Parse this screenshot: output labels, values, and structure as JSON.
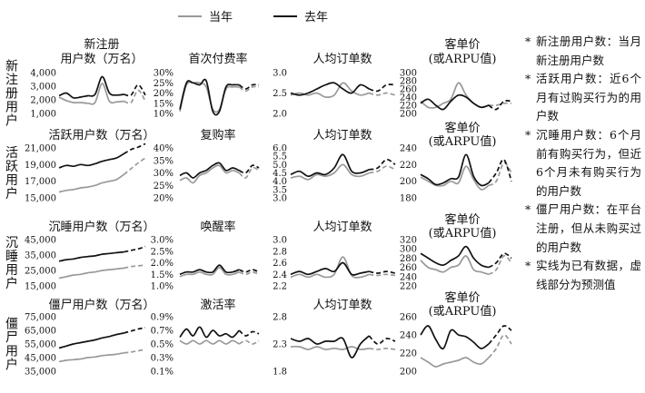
{
  "legend": [
    {
      "label": "当年",
      "color": "#999999"
    },
    {
      "label": "去年",
      "color": "#111111"
    }
  ],
  "notes": [
    "新注册用户数：当月新注册用户数",
    "活跃用户数：近6个月有过购买行为的用户数",
    "沉睡用户数：6个月前有购买行为，但近6个月未有购买行为的用户数",
    "僵尸用户数：在平台注册，但从未购买过的用户数",
    "实线为已有数据，虚线部分为预测值"
  ],
  "chart_data": [
    {
      "row": 0,
      "col": 0,
      "type": "line",
      "title": "新注册\n用户数（万名）",
      "ylabel": "新注册用户",
      "ylim": [
        1000,
        4000
      ],
      "yticks": [
        "1,000",
        "2,000",
        "3,000",
        "4,000"
      ],
      "series": [
        {
          "name": "当年",
          "values": [
            2200,
            1950,
            1800,
            1800,
            1750,
            1800,
            3200,
            1900,
            1850,
            1900,
            1800,
            2700,
            1900
          ]
        },
        {
          "name": "去年",
          "values": [
            2300,
            2500,
            2150,
            2200,
            2300,
            2400,
            3700,
            2500,
            2350,
            2400,
            2350,
            3100,
            2350
          ]
        }
      ]
    },
    {
      "row": 0,
      "col": 1,
      "type": "line",
      "title": "首次付费率",
      "ylim": [
        10,
        30
      ],
      "yticks": [
        "10%",
        "15%",
        "20%",
        "25%",
        "30%"
      ],
      "series": [
        {
          "name": "当年",
          "values": [
            11,
            24,
            25,
            25,
            23,
            12,
            12,
            22,
            23,
            23,
            21,
            23,
            23
          ]
        },
        {
          "name": "去年",
          "values": [
            12,
            25,
            25,
            24,
            26,
            11,
            11,
            23,
            24,
            24,
            22,
            24,
            24
          ]
        }
      ]
    },
    {
      "row": 0,
      "col": 2,
      "type": "line",
      "title": "人均订单数",
      "ylim": [
        2.0,
        3.0
      ],
      "yticks": [
        "2.0",
        "2.5",
        "3.0"
      ],
      "series": [
        {
          "name": "当年",
          "values": [
            2.45,
            2.5,
            2.45,
            2.5,
            2.4,
            2.45,
            2.75,
            2.55,
            2.45,
            2.5,
            2.45,
            2.5,
            2.45
          ]
        },
        {
          "name": "去年",
          "values": [
            2.5,
            2.45,
            2.5,
            2.6,
            2.7,
            2.75,
            2.6,
            2.5,
            2.7,
            2.6,
            2.55,
            2.7,
            2.7
          ]
        }
      ]
    },
    {
      "row": 0,
      "col": 3,
      "type": "line",
      "title": "客单价\n(或ARPU值)",
      "ylim": [
        200,
        300
      ],
      "yticks": [
        "200",
        "220",
        "240",
        "260",
        "280",
        "300"
      ],
      "series": [
        {
          "name": "当年",
          "values": [
            230,
            215,
            215,
            225,
            235,
            275,
            245,
            225,
            215,
            220,
            220,
            225,
            225
          ]
        },
        {
          "name": "去年",
          "values": [
            225,
            235,
            220,
            210,
            230,
            245,
            240,
            225,
            215,
            220,
            210,
            230,
            230
          ]
        }
      ]
    },
    {
      "row": 1,
      "col": 0,
      "type": "line",
      "title": "活跃用户数（万名）",
      "ylabel": "活跃用户",
      "ylim": [
        15000,
        21000
      ],
      "yticks": [
        "15,000",
        "17,000",
        "19,000",
        "21,000"
      ],
      "series": [
        {
          "name": "当年",
          "values": [
            15700,
            15900,
            16000,
            16200,
            16300,
            16500,
            16800,
            17000,
            17200,
            17800,
            18500,
            19200,
            19800
          ]
        },
        {
          "name": "去年",
          "values": [
            18600,
            18900,
            18800,
            19000,
            18900,
            19100,
            19400,
            19600,
            19800,
            20300,
            20800,
            21100,
            21500
          ]
        }
      ]
    },
    {
      "row": 1,
      "col": 1,
      "type": "line",
      "title": "复购率",
      "ylim": [
        20,
        40
      ],
      "yticks": [
        "20%",
        "25%",
        "30%",
        "35%",
        "40%"
      ],
      "series": [
        {
          "name": "当年",
          "values": [
            27,
            28,
            26,
            29,
            30,
            32,
            33,
            30,
            31,
            30,
            28,
            32,
            31
          ]
        },
        {
          "name": "去年",
          "values": [
            29,
            30,
            28,
            30,
            31,
            33,
            34,
            31,
            32,
            31,
            30,
            33,
            32
          ]
        }
      ]
    },
    {
      "row": 1,
      "col": 2,
      "type": "line",
      "title": "人均订单数",
      "ylim": [
        3.0,
        6.0
      ],
      "yticks": [
        "3.0",
        "3.5",
        "4.0",
        "4.5",
        "5.0",
        "5.5",
        "6.0"
      ],
      "series": [
        {
          "name": "当年",
          "values": [
            4.2,
            4.3,
            4.1,
            4.4,
            4.3,
            4.5,
            5.0,
            4.4,
            4.3,
            4.5,
            4.6,
            4.9,
            4.7
          ]
        },
        {
          "name": "去年",
          "values": [
            4.4,
            4.6,
            4.3,
            4.5,
            4.4,
            4.8,
            5.6,
            4.6,
            4.5,
            4.7,
            4.8,
            5.3,
            5.0
          ]
        }
      ]
    },
    {
      "row": 1,
      "col": 3,
      "type": "line",
      "title": "客单价\n(或ARPU值)",
      "ylim": [
        180,
        240
      ],
      "yticks": [
        "180",
        "200",
        "220",
        "240"
      ],
      "series": [
        {
          "name": "当年",
          "values": [
            205,
            200,
            195,
            195,
            200,
            198,
            218,
            202,
            190,
            195,
            200,
            222,
            210
          ]
        },
        {
          "name": "去年",
          "values": [
            208,
            203,
            196,
            198,
            203,
            205,
            232,
            206,
            195,
            198,
            210,
            226,
            200
          ]
        }
      ]
    },
    {
      "row": 2,
      "col": 0,
      "type": "line",
      "title": "沉睡用户数（万名）",
      "ylabel": "沉睡用户",
      "ylim": [
        15000,
        45000
      ],
      "yticks": [
        "15,000",
        "25,000",
        "35,000",
        "45,000"
      ],
      "series": [
        {
          "name": "当年",
          "values": [
            20000,
            21000,
            22000,
            22500,
            23500,
            24000,
            25000,
            25500,
            26000,
            26500,
            27500,
            28000,
            28500
          ]
        },
        {
          "name": "去年",
          "values": [
            31000,
            32000,
            32500,
            33500,
            34000,
            34500,
            35500,
            36000,
            36500,
            37000,
            38000,
            39000,
            40500
          ]
        }
      ]
    },
    {
      "row": 2,
      "col": 1,
      "type": "line",
      "title": "唤醒率",
      "ylim": [
        1.0,
        3.0
      ],
      "yticks": [
        "1.0%",
        "1.5%",
        "2.0%",
        "2.5%",
        "3.0%"
      ],
      "series": [
        {
          "name": "当年",
          "values": [
            1.4,
            1.5,
            1.5,
            1.6,
            1.5,
            1.5,
            1.8,
            1.5,
            1.5,
            1.6,
            1.5,
            1.6,
            1.5
          ]
        },
        {
          "name": "去年",
          "values": [
            1.5,
            1.6,
            1.6,
            1.7,
            1.6,
            1.6,
            1.9,
            1.6,
            1.6,
            1.7,
            1.6,
            1.7,
            1.6
          ]
        }
      ]
    },
    {
      "row": 2,
      "col": 2,
      "type": "line",
      "title": "人均订单数",
      "ylim": [
        2.2,
        3.0
      ],
      "yticks": [
        "2.2",
        "2.4",
        "2.6",
        "2.8",
        "3.0"
      ],
      "series": [
        {
          "name": "当年",
          "values": [
            2.35,
            2.4,
            2.35,
            2.4,
            2.35,
            2.4,
            2.7,
            2.38,
            2.35,
            2.4,
            2.38,
            2.4,
            2.38
          ]
        },
        {
          "name": "去年",
          "values": [
            2.4,
            2.45,
            2.4,
            2.45,
            2.5,
            2.45,
            2.6,
            2.4,
            2.42,
            2.45,
            2.42,
            2.45,
            2.42
          ]
        }
      ]
    },
    {
      "row": 2,
      "col": 3,
      "type": "line",
      "title": "客单价\n(或ARPU值)",
      "ylim": [
        220,
        320
      ],
      "yticks": [
        "220",
        "240",
        "260",
        "280",
        "300",
        "320"
      ],
      "series": [
        {
          "name": "当年",
          "values": [
            275,
            260,
            255,
            250,
            260,
            265,
            285,
            255,
            250,
            245,
            255,
            285,
            270
          ]
        },
        {
          "name": "去年",
          "values": [
            290,
            280,
            270,
            265,
            275,
            285,
            305,
            280,
            265,
            260,
            270,
            290,
            280
          ]
        }
      ]
    },
    {
      "row": 3,
      "col": 0,
      "type": "line",
      "title": "僵尸用户数（万名）",
      "ylabel": "僵尸用户",
      "ylim": [
        35000,
        75000
      ],
      "yticks": [
        "35,000",
        "45,000",
        "55,000",
        "65,000",
        "75,000"
      ],
      "series": [
        {
          "name": "当年",
          "values": [
            42000,
            43000,
            43500,
            44000,
            45000,
            45500,
            46500,
            47000,
            47500,
            48500,
            49000,
            50000,
            51000
          ]
        },
        {
          "name": "去年",
          "values": [
            52000,
            53500,
            55000,
            56000,
            57000,
            58000,
            59500,
            60500,
            62000,
            63000,
            64500,
            66000,
            67000
          ]
        }
      ]
    },
    {
      "row": 3,
      "col": 1,
      "type": "line",
      "title": "激活率",
      "ylim": [
        0.1,
        0.9
      ],
      "yticks": [
        "0.1%",
        "0.3%",
        "0.5%",
        "0.7%",
        "0.9%"
      ],
      "series": [
        {
          "name": "当年",
          "values": [
            0.55,
            0.5,
            0.55,
            0.5,
            0.55,
            0.5,
            0.55,
            0.5,
            0.55,
            0.5,
            0.55,
            0.5,
            0.55
          ]
        },
        {
          "name": "去年",
          "values": [
            0.6,
            0.72,
            0.62,
            0.75,
            0.6,
            0.7,
            0.62,
            0.65,
            0.6,
            0.7,
            0.62,
            0.68,
            0.65
          ]
        }
      ]
    },
    {
      "row": 3,
      "col": 2,
      "type": "line",
      "title": "人均订单数",
      "ylim": [
        1.8,
        2.8
      ],
      "yticks": [
        "1.8",
        "2.3",
        "2.8"
      ],
      "series": [
        {
          "name": "当年",
          "values": [
            2.25,
            2.25,
            2.2,
            2.25,
            2.2,
            2.22,
            2.2,
            2.25,
            2.2,
            2.22,
            2.2,
            2.22,
            2.2
          ]
        },
        {
          "name": "去年",
          "values": [
            2.4,
            2.35,
            2.4,
            2.3,
            2.35,
            2.35,
            2.4,
            2.05,
            2.3,
            2.45,
            2.3,
            2.4,
            2.35
          ]
        }
      ]
    },
    {
      "row": 3,
      "col": 3,
      "type": "line",
      "title": "客单价\n(或ARPU值)",
      "ylim": [
        200,
        260
      ],
      "yticks": [
        "200",
        "220",
        "240",
        "260"
      ],
      "series": [
        {
          "name": "当年",
          "values": [
            215,
            210,
            205,
            208,
            210,
            212,
            215,
            210,
            208,
            215,
            225,
            240,
            230
          ]
        },
        {
          "name": "去年",
          "values": [
            240,
            250,
            235,
            225,
            245,
            240,
            238,
            232,
            225,
            230,
            240,
            250,
            245
          ]
        }
      ]
    }
  ]
}
